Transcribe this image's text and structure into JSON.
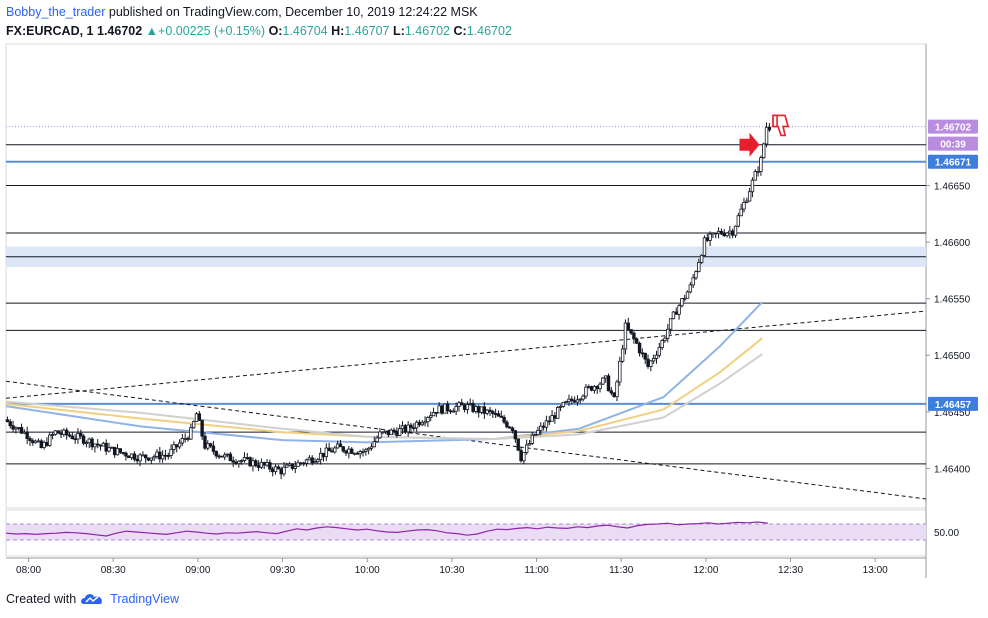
{
  "header": {
    "author": "Bobby_the_trader",
    "published_text": "published on TradingView.com, December 10, 2019 12:24:22 MSK",
    "symbol": "FX:EURCAD, 1",
    "last_price": "1.46702",
    "change_arrow": "▲",
    "change": "+0.00225 (+0.15%)",
    "o_label": "O:",
    "o_value": "1.46704",
    "h_label": "H:",
    "h_value": "1.46707",
    "l_label": "L:",
    "l_value": "1.46702",
    "c_label": "C:",
    "c_value": "1.46702"
  },
  "footer": {
    "created_with": "Created with",
    "brand": "TradingView"
  },
  "colors": {
    "candle_up_body": "#ffffff",
    "candle_down_body": "#131722",
    "hline": "#131722",
    "blue_level": "#5b8cd6",
    "zone": "#dbe6f7",
    "ema_blue": "#8fb3e8",
    "ema_yellow": "#f0d080",
    "ema_grey": "#d0d0d0",
    "rsi_line": "#8e24aa",
    "rsi_band": "#eadcf5",
    "price_tag_purple": "#b98ce0",
    "price_tag_blue": "#3d7ddc",
    "annotation_red": "#e91e2d"
  },
  "chart_data": {
    "type": "candlestick",
    "symbol": "FX:EURCAD",
    "interval": "1",
    "ylim": [
      1.46365,
      1.46775
    ],
    "xlim": [
      "07:52",
      "13:18"
    ],
    "x_ticks": [
      "08:00",
      "08:30",
      "09:00",
      "09:30",
      "10:00",
      "10:30",
      "11:00",
      "11:30",
      "12:00",
      "12:30",
      "13:00"
    ],
    "y_ticks": [
      "1.46400",
      "1.46450",
      "1.46500",
      "1.46550",
      "1.46600",
      "1.46650"
    ],
    "price_labels": [
      {
        "text": "1.46702",
        "value": 1.46702,
        "style": "last"
      },
      {
        "text": "00:39",
        "value": 1.46687,
        "style": "countdown"
      },
      {
        "text": "1.46671",
        "value": 1.46671,
        "style": "level"
      },
      {
        "text": "1.46457",
        "value": 1.46457,
        "style": "level"
      }
    ],
    "horizontal_levels": [
      1.46686,
      1.4665,
      1.46608,
      1.46587,
      1.46546,
      1.46522,
      1.46432,
      1.46404
    ],
    "blue_levels": [
      1.46671,
      1.46457
    ],
    "zone": [
      1.46578,
      1.46596
    ],
    "last_price_line": 1.46702,
    "trendlines": [
      {
        "from": [
          "07:52",
          1.46477
        ],
        "to": [
          "13:18",
          1.46373
        ],
        "style": "dashed"
      },
      {
        "from": [
          "07:52",
          1.46462
        ],
        "to": [
          "13:18",
          1.46539
        ],
        "style": "dashed"
      }
    ],
    "ema_series": [
      {
        "color": "blue",
        "points": [
          [
            "07:52",
            1.46455
          ],
          [
            "08:40",
            1.46437
          ],
          [
            "09:30",
            1.46425
          ],
          [
            "10:00",
            1.46423
          ],
          [
            "10:45",
            1.46426
          ],
          [
            "11:15",
            1.46435
          ],
          [
            "11:45",
            1.46463
          ],
          [
            "12:05",
            1.46508
          ],
          [
            "12:20",
            1.46547
          ]
        ]
      },
      {
        "color": "yellow",
        "points": [
          [
            "07:52",
            1.46457
          ],
          [
            "08:40",
            1.46444
          ],
          [
            "09:30",
            1.46432
          ],
          [
            "10:00",
            1.46428
          ],
          [
            "10:45",
            1.46426
          ],
          [
            "11:15",
            1.46433
          ],
          [
            "11:45",
            1.46452
          ],
          [
            "12:05",
            1.46485
          ],
          [
            "12:20",
            1.46515
          ]
        ]
      },
      {
        "color": "grey",
        "points": [
          [
            "07:52",
            1.46459
          ],
          [
            "08:40",
            1.46449
          ],
          [
            "09:30",
            1.46435
          ],
          [
            "10:00",
            1.46428
          ],
          [
            "10:45",
            1.46426
          ],
          [
            "11:15",
            1.4643
          ],
          [
            "11:45",
            1.46445
          ],
          [
            "12:05",
            1.46475
          ],
          [
            "12:20",
            1.46501
          ]
        ]
      }
    ],
    "price_path": [
      [
        "07:52",
        1.46443
      ],
      [
        "08:00",
        1.4643
      ],
      [
        "08:05",
        1.46418
      ],
      [
        "08:10",
        1.46432
      ],
      [
        "08:20",
        1.46426
      ],
      [
        "08:30",
        1.46416
      ],
      [
        "08:40",
        1.4641
      ],
      [
        "08:50",
        1.46412
      ],
      [
        "08:58",
        1.46432
      ],
      [
        "09:00",
        1.46448
      ],
      [
        "09:03",
        1.4642
      ],
      [
        "09:10",
        1.4641
      ],
      [
        "09:20",
        1.46405
      ],
      [
        "09:30",
        1.46398
      ],
      [
        "09:40",
        1.46408
      ],
      [
        "09:50",
        1.46418
      ],
      [
        "10:00",
        1.46415
      ],
      [
        "10:05",
        1.4643
      ],
      [
        "10:15",
        1.46435
      ],
      [
        "10:25",
        1.46452
      ],
      [
        "10:35",
        1.46455
      ],
      [
        "10:45",
        1.46448
      ],
      [
        "10:52",
        1.46436
      ],
      [
        "10:55",
        1.4641
      ],
      [
        "11:00",
        1.4643
      ],
      [
        "11:10",
        1.46455
      ],
      [
        "11:20",
        1.46472
      ],
      [
        "11:25",
        1.46478
      ],
      [
        "11:28",
        1.4646
      ],
      [
        "11:32",
        1.46525
      ],
      [
        "11:36",
        1.4651
      ],
      [
        "11:40",
        1.4649
      ],
      [
        "11:45",
        1.46512
      ],
      [
        "11:50",
        1.4654
      ],
      [
        "11:55",
        1.4656
      ],
      [
        "12:00",
        1.466
      ],
      [
        "12:05",
        1.46608
      ],
      [
        "12:10",
        1.4661
      ],
      [
        "12:15",
        1.4664
      ],
      [
        "12:20",
        1.46672
      ],
      [
        "12:22",
        1.46702
      ]
    ],
    "rsi": {
      "ytick": "50.00",
      "band": [
        30,
        70
      ],
      "values": [
        47,
        45,
        46,
        44,
        46,
        47,
        49,
        48,
        46,
        43,
        40,
        47,
        52,
        50,
        48,
        46,
        44,
        48,
        52,
        50,
        47,
        45,
        48,
        47,
        49,
        51,
        48,
        46,
        52,
        58,
        55,
        60,
        63,
        61,
        58,
        55,
        57,
        53,
        50,
        49,
        52,
        55,
        56,
        53,
        48,
        46,
        42,
        45,
        52,
        57,
        56,
        59,
        61,
        58,
        62,
        60,
        59,
        63,
        61,
        65,
        67,
        63,
        60,
        66,
        69,
        70,
        72,
        68,
        70,
        71,
        73,
        70,
        72,
        74,
        73,
        75,
        72
      ]
    }
  }
}
